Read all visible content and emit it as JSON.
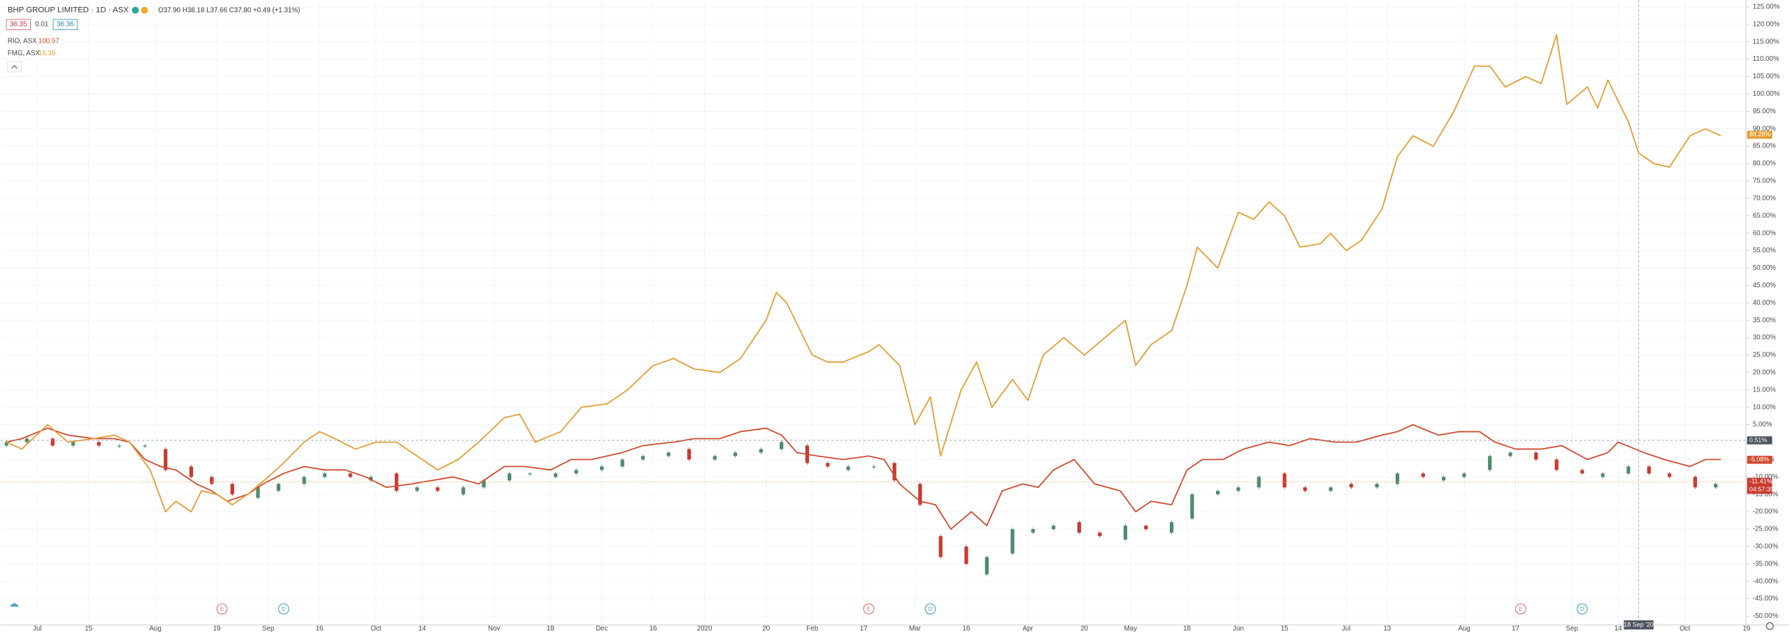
{
  "chart_data": {
    "type": "comparison",
    "title": "BHP GROUP LIMITED · 1D · ASX",
    "ohlc_text": "O37.90 H38.18 L37.66 C37.80 +0.49 (+1.31%)",
    "bid": 36.35,
    "spread": 0.01,
    "ask": 36.36,
    "xlim": [
      0,
      340
    ],
    "ylim": [
      -52.5,
      127
    ],
    "grid": true,
    "xticks": [
      {
        "value": 6,
        "label": "Jul"
      },
      {
        "value": 16,
        "label": "15"
      },
      {
        "value": 29,
        "label": "Aug"
      },
      {
        "value": 41,
        "label": "19"
      },
      {
        "value": 51,
        "label": "Sep"
      },
      {
        "value": 61,
        "label": "16"
      },
      {
        "value": 72,
        "label": "Oct"
      },
      {
        "value": 81,
        "label": "14"
      },
      {
        "value": 95,
        "label": "Nov"
      },
      {
        "value": 106,
        "label": "18"
      },
      {
        "value": 116,
        "label": "Dec"
      },
      {
        "value": 126,
        "label": "16"
      },
      {
        "value": 136,
        "label": "2020"
      },
      {
        "value": 148,
        "label": "20"
      },
      {
        "value": 157,
        "label": "Feb"
      },
      {
        "value": 167,
        "label": "17"
      },
      {
        "value": 177,
        "label": "Mar"
      },
      {
        "value": 187,
        "label": "16"
      },
      {
        "value": 199,
        "label": "Apr"
      },
      {
        "value": 210,
        "label": "20"
      },
      {
        "value": 219,
        "label": "May"
      },
      {
        "value": 230,
        "label": "18"
      },
      {
        "value": 240,
        "label": "Jun"
      },
      {
        "value": 249,
        "label": "15"
      },
      {
        "value": 261,
        "label": "Jul"
      },
      {
        "value": 269,
        "label": "13"
      },
      {
        "value": 284,
        "label": "Aug"
      },
      {
        "value": 294,
        "label": "17"
      },
      {
        "value": 305,
        "label": "Sep"
      },
      {
        "value": 314,
        "label": "14"
      },
      {
        "value": 327,
        "label": "Oct"
      },
      {
        "value": 339,
        "label": "19"
      }
    ],
    "yticks": [
      {
        "value": 125,
        "label": "125.00%"
      },
      {
        "value": 120,
        "label": "120.00%"
      },
      {
        "value": 115,
        "label": "115.00%"
      },
      {
        "value": 110,
        "label": "110.00%"
      },
      {
        "value": 105,
        "label": "105.00%"
      },
      {
        "value": 100,
        "label": "100.00%"
      },
      {
        "value": 95,
        "label": "95.00%"
      },
      {
        "value": 90,
        "label": "90.00%"
      },
      {
        "value": 85,
        "label": "85.00%"
      },
      {
        "value": 80,
        "label": "80.00%"
      },
      {
        "value": 75,
        "label": "75.00%"
      },
      {
        "value": 70,
        "label": "70.00%"
      },
      {
        "value": 65,
        "label": "65.00%"
      },
      {
        "value": 60,
        "label": "60.00%"
      },
      {
        "value": 55,
        "label": "55.00%"
      },
      {
        "value": 50,
        "label": "50.00%"
      },
      {
        "value": 45,
        "label": "45.00%"
      },
      {
        "value": 40,
        "label": "40.00%"
      },
      {
        "value": 35,
        "label": "35.00%"
      },
      {
        "value": 30,
        "label": "30.00%"
      },
      {
        "value": 25,
        "label": "25.00%"
      },
      {
        "value": 20,
        "label": "20.00%"
      },
      {
        "value": 15,
        "label": "15.00%"
      },
      {
        "value": 10,
        "label": "10.00%"
      },
      {
        "value": 5,
        "label": "5.00%"
      },
      {
        "value": 0,
        "label": "0.00%"
      },
      {
        "value": -5,
        "label": "-5.00%"
      },
      {
        "value": -10,
        "label": "-10.00%"
      },
      {
        "value": -15,
        "label": "-15.00%"
      },
      {
        "value": -20,
        "label": "-20.00%"
      },
      {
        "value": -25,
        "label": "-25.00%"
      },
      {
        "value": -30,
        "label": "-30.00%"
      },
      {
        "value": -35,
        "label": "-35.00%"
      },
      {
        "value": -40,
        "label": "-40.00%"
      },
      {
        "value": -45,
        "label": "-45.00%"
      },
      {
        "value": -50,
        "label": "-50.00%"
      }
    ],
    "candles": {
      "up_color": "#4f8a6c",
      "down_color": "#c9392e",
      "x": [
        0,
        4,
        9,
        13,
        18,
        22,
        27,
        31,
        36,
        40,
        44,
        49,
        53,
        58,
        62,
        67,
        71,
        76,
        80,
        84,
        89,
        93,
        98,
        102,
        107,
        111,
        116,
        120,
        124,
        129,
        133,
        138,
        142,
        147,
        151,
        156,
        160,
        164,
        169,
        173,
        178,
        182,
        187,
        191,
        196,
        200,
        204,
        209,
        213,
        218,
        222,
        227,
        231,
        236,
        240,
        244,
        249,
        253,
        258,
        262,
        267,
        271,
        276,
        280,
        284,
        289,
        293,
        298,
        302,
        307,
        311,
        316,
        320,
        324,
        329,
        333
      ],
      "open": [
        -1,
        0,
        1,
        -1,
        0,
        -1,
        -1,
        -2,
        -7,
        -10,
        -12,
        -16,
        -14,
        -12,
        -10,
        -9,
        -11,
        -9,
        -14,
        -13,
        -15,
        -13,
        -11,
        -9,
        -10,
        -9,
        -8,
        -7,
        -5,
        -4,
        -2,
        -5,
        -4,
        -3,
        -2,
        -1,
        -6,
        -8,
        -7,
        -6,
        -12,
        -27,
        -30,
        -38,
        -32,
        -26,
        -25,
        -23,
        -26,
        -28,
        -24,
        -26,
        -22,
        -15,
        -14,
        -13,
        -9,
        -13,
        -14,
        -12,
        -13,
        -12,
        -9,
        -11,
        -10,
        -8,
        -4,
        -3,
        -5,
        -8,
        -10,
        -9,
        -7,
        -9,
        -10,
        -13
      ],
      "close": [
        0,
        1,
        -1,
        0,
        -1,
        -1,
        -1,
        -8,
        -10,
        -12,
        -15,
        -13,
        -12,
        -10,
        -9,
        -10,
        -10,
        -14,
        -13,
        -14,
        -13,
        -11,
        -9,
        -9,
        -9,
        -8,
        -7,
        -5,
        -4,
        -3,
        -5,
        -4,
        -3,
        -2,
        0,
        -6,
        -7,
        -7,
        -7,
        -11,
        -18,
        -33,
        -35,
        -33,
        -25,
        -25,
        -24,
        -26,
        -27,
        -24,
        -25,
        -23,
        -15,
        -14,
        -13,
        -10,
        -13,
        -14,
        -13,
        -13,
        -12,
        -9,
        -10,
        -10,
        -9,
        -4,
        -3,
        -5,
        -8,
        -9,
        -9,
        -7,
        -9,
        -10,
        -13,
        -12
      ],
      "last": {
        "value": -11.41,
        "label": "-11.41%"
      },
      "countdown": "04:57:39"
    },
    "series": [
      {
        "name": "RIO, ASX",
        "legend_value": 100.57,
        "color": "#cf4a2d",
        "x": [
          0,
          3,
          8,
          12,
          17,
          21,
          24,
          27,
          30,
          33,
          37,
          40,
          43,
          47,
          50,
          54,
          58,
          62,
          66,
          70,
          74,
          79,
          83,
          87,
          92,
          97,
          101,
          106,
          110,
          114,
          120,
          124,
          130,
          134,
          139,
          143,
          148,
          151,
          154,
          158,
          163,
          168,
          171,
          174,
          178,
          181,
          184,
          188,
          191,
          194,
          198,
          201,
          204,
          208,
          212,
          217,
          220,
          223,
          227,
          230,
          233,
          237,
          241,
          246,
          250,
          254,
          259,
          263,
          268,
          271,
          274,
          279,
          283,
          287,
          290,
          294,
          299,
          303,
          308,
          312,
          314,
          319,
          323,
          328,
          331,
          334
        ],
        "values": [
          0,
          1,
          4,
          2,
          1,
          1,
          0,
          -5,
          -7,
          -8,
          -12,
          -14,
          -17,
          -15,
          -12,
          -9,
          -7,
          -8,
          -8,
          -10,
          -13,
          -12,
          -11,
          -10,
          -12,
          -7,
          -7,
          -8,
          -5,
          -5,
          -3,
          -1,
          0,
          1,
          1,
          3,
          4,
          2,
          -3,
          -4,
          -5,
          -4,
          -5,
          -12,
          -17,
          -18,
          -25,
          -20,
          -24,
          -14,
          -12,
          -13,
          -8,
          -5,
          -12,
          -14,
          -20,
          -17,
          -18,
          -8,
          -5,
          -5,
          -2,
          0,
          -1,
          1,
          0,
          0,
          2,
          3,
          5,
          2,
          3,
          3,
          0,
          -2,
          -2,
          -1,
          -5,
          -3,
          0,
          -3,
          -5,
          -7,
          -5,
          -5
        ],
        "last": {
          "value": -5.08,
          "label": "-5.08%"
        }
      },
      {
        "name": "FMG, ASX",
        "legend_value": 16.39,
        "color": "#e59d32",
        "x": [
          0,
          3,
          8,
          12,
          17,
          21,
          24,
          28,
          31,
          33,
          36,
          38,
          41,
          44,
          47,
          51,
          54,
          58,
          61,
          64,
          68,
          72,
          76,
          79,
          84,
          88,
          92,
          97,
          100,
          103,
          108,
          112,
          117,
          121,
          126,
          130,
          134,
          139,
          143,
          148,
          150,
          152,
          157,
          160,
          163,
          168,
          170,
          174,
          177,
          180,
          182,
          186,
          189,
          192,
          196,
          199,
          202,
          206,
          210,
          214,
          218,
          220,
          223,
          227,
          230,
          232,
          236,
          240,
          243,
          246,
          249,
          252,
          256,
          258,
          261,
          264,
          268,
          271,
          274,
          278,
          282,
          286,
          289,
          292,
          296,
          299,
          302,
          304,
          308,
          310,
          312,
          316,
          318,
          321,
          324,
          328,
          331,
          334
        ],
        "values": [
          0,
          -2,
          5,
          0,
          1,
          2,
          0,
          -8,
          -20,
          -17,
          -20,
          -14,
          -15,
          -18,
          -15,
          -10,
          -6,
          0,
          3,
          1,
          -2,
          0,
          0,
          -3,
          -8,
          -5,
          0,
          7,
          8,
          0,
          3,
          10,
          11,
          15,
          22,
          24,
          21,
          20,
          24,
          35,
          43,
          40,
          25,
          23,
          23,
          26,
          28,
          22,
          5,
          13,
          -4,
          15,
          23,
          10,
          18,
          12,
          25,
          30,
          25,
          30,
          35,
          22,
          28,
          32,
          45,
          56,
          50,
          66,
          64,
          69,
          65,
          56,
          57,
          60,
          55,
          58,
          67,
          82,
          88,
          85,
          95,
          108,
          108,
          102,
          105,
          103,
          117,
          97,
          102,
          96,
          104,
          92,
          83,
          80,
          79,
          88,
          90,
          88
        ],
        "last": {
          "value": 88.28,
          "label": "88.28%"
        }
      }
    ],
    "crosshair": {
      "y": {
        "value": 0.51,
        "label": "0.51%"
      },
      "x": {
        "value": 318,
        "label": "18 Sep '20"
      }
    },
    "events": [
      {
        "label": "E",
        "x": 42
      },
      {
        "label": "D",
        "x": 54
      },
      {
        "label": "E",
        "x": 168
      },
      {
        "label": "D",
        "x": 180
      },
      {
        "label": "E",
        "x": 295
      },
      {
        "label": "D",
        "x": 307
      }
    ]
  }
}
